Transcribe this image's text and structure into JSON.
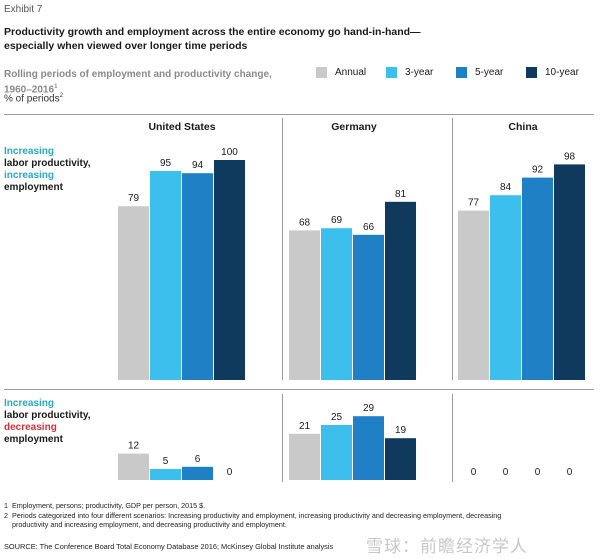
{
  "exhibit": "Exhibit 7",
  "title_line1": "Productivity growth and employment across the entire economy go hand-in-hand—",
  "title_line2": "especially when viewed over longer time periods",
  "subtitle_line1": "Rolling periods of employment and productivity change,",
  "subtitle_line2": "1960–2016",
  "subtitle_sup": "1",
  "unit": "% of periods",
  "unit_sup": "2",
  "legend": [
    {
      "label": "Annual",
      "color": "#c9c9c9"
    },
    {
      "label": "3-year",
      "color": "#3dbfee"
    },
    {
      "label": "5-year",
      "color": "#1f80c6"
    },
    {
      "label": "10-year",
      "color": "#0f3a5e"
    }
  ],
  "scenarios": {
    "top": {
      "part1": "Increasing",
      "part2": "labor productivity,",
      "part3": "increasing",
      "part4": "employment"
    },
    "bottom": {
      "part1": "Increasing",
      "part2": "labor productivity,",
      "part3": "decreasing",
      "part4": "employment"
    }
  },
  "chart_data": {
    "type": "bar",
    "series": [
      {
        "name": "Annual",
        "color": "#c9c9c9"
      },
      {
        "name": "3-year",
        "color": "#3dbfee"
      },
      {
        "name": "5-year",
        "color": "#1f80c6"
      },
      {
        "name": "10-year",
        "color": "#0f3a5e"
      }
    ],
    "panels": [
      {
        "country": "United States",
        "increasing_employment": [
          79,
          95,
          94,
          100
        ],
        "decreasing_employment": [
          12,
          5,
          6,
          0
        ]
      },
      {
        "country": "Germany",
        "increasing_employment": [
          68,
          69,
          66,
          81
        ],
        "decreasing_employment": [
          21,
          25,
          29,
          19
        ]
      },
      {
        "country": "China",
        "increasing_employment": [
          77,
          84,
          92,
          98
        ],
        "decreasing_employment": [
          0,
          0,
          0,
          0
        ]
      }
    ],
    "ylim": [
      0,
      100
    ]
  },
  "footnotes": {
    "n1_num": "1",
    "n1": "Employment, persons; productivity, GDP per person, 2015 $.",
    "n2_num": "2",
    "n2_line1": "Periods categorized into four different scenarios: Increasing productivity and employment, increasing productivity and decreasing employment, decreasing",
    "n2_line2": "productivity and increasing employment, and decreasing productivity and employment."
  },
  "source": "SOURCE: The Conference Board Total Economy Database 2016; McKinsey Global Institute analysis",
  "watermark": "雪球：前瞻经济学人"
}
